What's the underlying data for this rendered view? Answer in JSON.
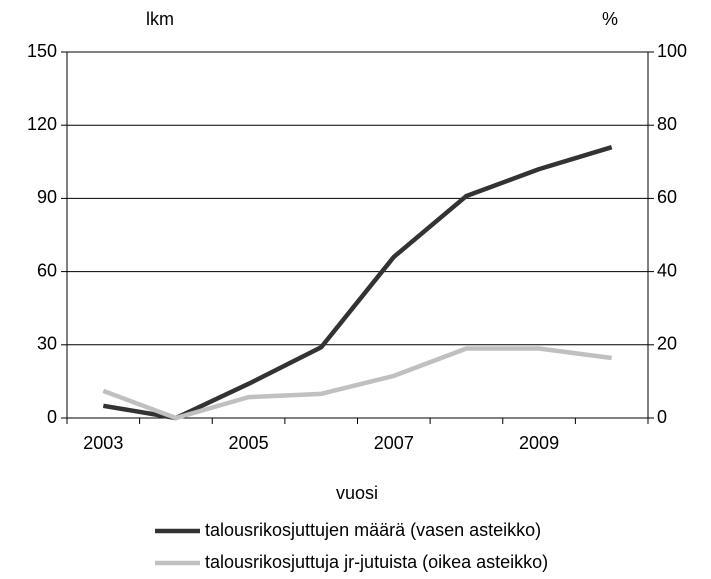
{
  "chart_data": {
    "type": "line",
    "y_label": "lkm",
    "y2_label": "%",
    "x_label": "vuosi",
    "categories": [
      "2003",
      null,
      "2005",
      null,
      "2007",
      null,
      "2009",
      null
    ],
    "series": [
      {
        "name": "talousrikosjuttujen määrä (vasen asteikko)",
        "color": "#333333",
        "values": [
          5,
          0,
          14,
          29,
          66,
          91,
          102,
          111
        ]
      },
      {
        "name": "talousrikosjuttuja jr-jutuista (oikea asteikko)",
        "color": "#c0c0c0",
        "axis": "y2",
        "values": [
          7.4,
          0,
          5.7,
          6.6,
          11.5,
          19,
          19,
          16.4
        ]
      }
    ],
    "ylim": [
      0,
      150
    ],
    "yticks": [
      0,
      30,
      60,
      90,
      120,
      150
    ],
    "y2lim": [
      0,
      100
    ],
    "y2ticks": [
      0,
      20,
      40,
      60,
      80,
      100
    ],
    "grid": true,
    "legend": "bottom"
  }
}
